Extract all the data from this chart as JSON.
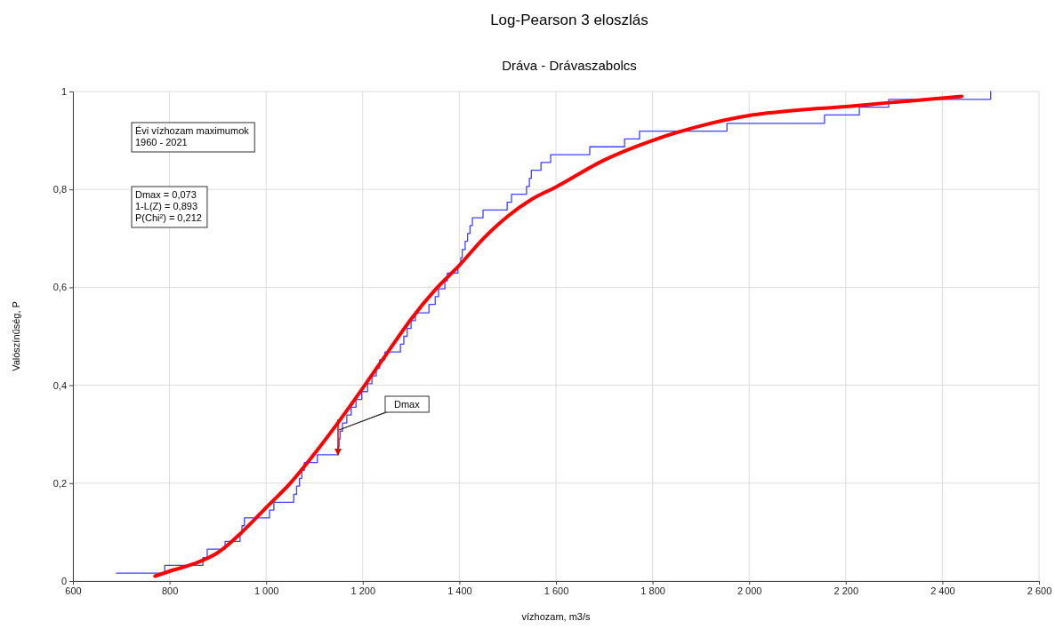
{
  "chart_data": {
    "type": "line",
    "title": "Log-Pearson 3 eloszlás",
    "subtitle": "Dráva - Drávaszabolcs",
    "xlabel": "vízhozam, m3/s",
    "ylabel": "Valószínűség, P",
    "xlim": [
      600,
      2600
    ],
    "ylim": [
      0,
      1
    ],
    "xticks": [
      600,
      800,
      {
        "value": 1000,
        "label": "1 000"
      },
      {
        "value": 1200,
        "label": "1 200"
      },
      {
        "value": 1400,
        "label": "1 400"
      },
      {
        "value": 1600,
        "label": "1 600"
      },
      {
        "value": 1800,
        "label": "1 800"
      },
      {
        "value": 2000,
        "label": "2 000"
      },
      {
        "value": 2200,
        "label": "2 200"
      },
      {
        "value": 2400,
        "label": "2 400"
      },
      {
        "value": 2600,
        "label": "2 600"
      }
    ],
    "yticks": [
      0,
      {
        "value": 0.2,
        "label": "0,2"
      },
      {
        "value": 0.4,
        "label": "0,4"
      },
      {
        "value": 0.6,
        "label": "0,6"
      },
      {
        "value": 0.8,
        "label": "0,8"
      },
      1
    ],
    "grid": true,
    "series": [
      {
        "type": "step",
        "color": "#4040ff",
        "x": [
          690,
          790,
          869,
          878,
          915,
          946,
          950,
          955,
          1007,
          1016,
          1057,
          1063,
          1069,
          1074,
          1079,
          1106,
          1149,
          1151,
          1153,
          1158,
          1167,
          1176,
          1186,
          1198,
          1210,
          1219,
          1228,
          1235,
          1246,
          1278,
          1285,
          1292,
          1300,
          1309,
          1337,
          1350,
          1357,
          1370,
          1375,
          1397,
          1403,
          1406,
          1412,
          1417,
          1422,
          1427,
          1449,
          1499,
          1508,
          1539,
          1545,
          1549,
          1569,
          1589,
          1670,
          1742,
          1773,
          1954,
          2156,
          2228,
          2289,
          2500
        ],
        "values": [
          0.016,
          0.032,
          0.048,
          0.065,
          0.081,
          0.097,
          0.113,
          0.129,
          0.145,
          0.161,
          0.177,
          0.194,
          0.21,
          0.226,
          0.242,
          0.258,
          0.274,
          0.29,
          0.306,
          0.323,
          0.339,
          0.355,
          0.371,
          0.387,
          0.403,
          0.419,
          0.435,
          0.452,
          0.468,
          0.484,
          0.5,
          0.516,
          0.532,
          0.548,
          0.565,
          0.581,
          0.597,
          0.613,
          0.629,
          0.645,
          0.661,
          0.677,
          0.694,
          0.71,
          0.726,
          0.742,
          0.758,
          0.774,
          0.79,
          0.806,
          0.823,
          0.839,
          0.855,
          0.871,
          0.887,
          0.903,
          0.919,
          0.935,
          0.952,
          0.968,
          0.984,
          1
        ]
      },
      {
        "type": "line",
        "color": "#ff0000",
        "x": [
          770,
          800,
          850,
          900,
          950,
          1000,
          1050,
          1100,
          1150,
          1200,
          1250,
          1300,
          1350,
          1400,
          1450,
          1500,
          1550,
          1600,
          1700,
          1800,
          1900,
          2000,
          2100,
          2200,
          2300,
          2440
        ],
        "values": [
          0.01,
          0.02,
          0.035,
          0.058,
          0.1,
          0.15,
          0.2,
          0.26,
          0.325,
          0.394,
          0.465,
          0.535,
          0.595,
          0.645,
          0.7,
          0.745,
          0.78,
          0.805,
          0.86,
          0.9,
          0.93,
          0.951,
          0.962,
          0.969,
          0.978,
          0.99
        ]
      }
    ],
    "annotations": [
      "Évi vízhozam maximumok\n1960 - 2021",
      "Dmax =  0,073\n1-L(Z) = 0,893\nP(Chi²) = 0,212",
      "Dmax"
    ]
  }
}
